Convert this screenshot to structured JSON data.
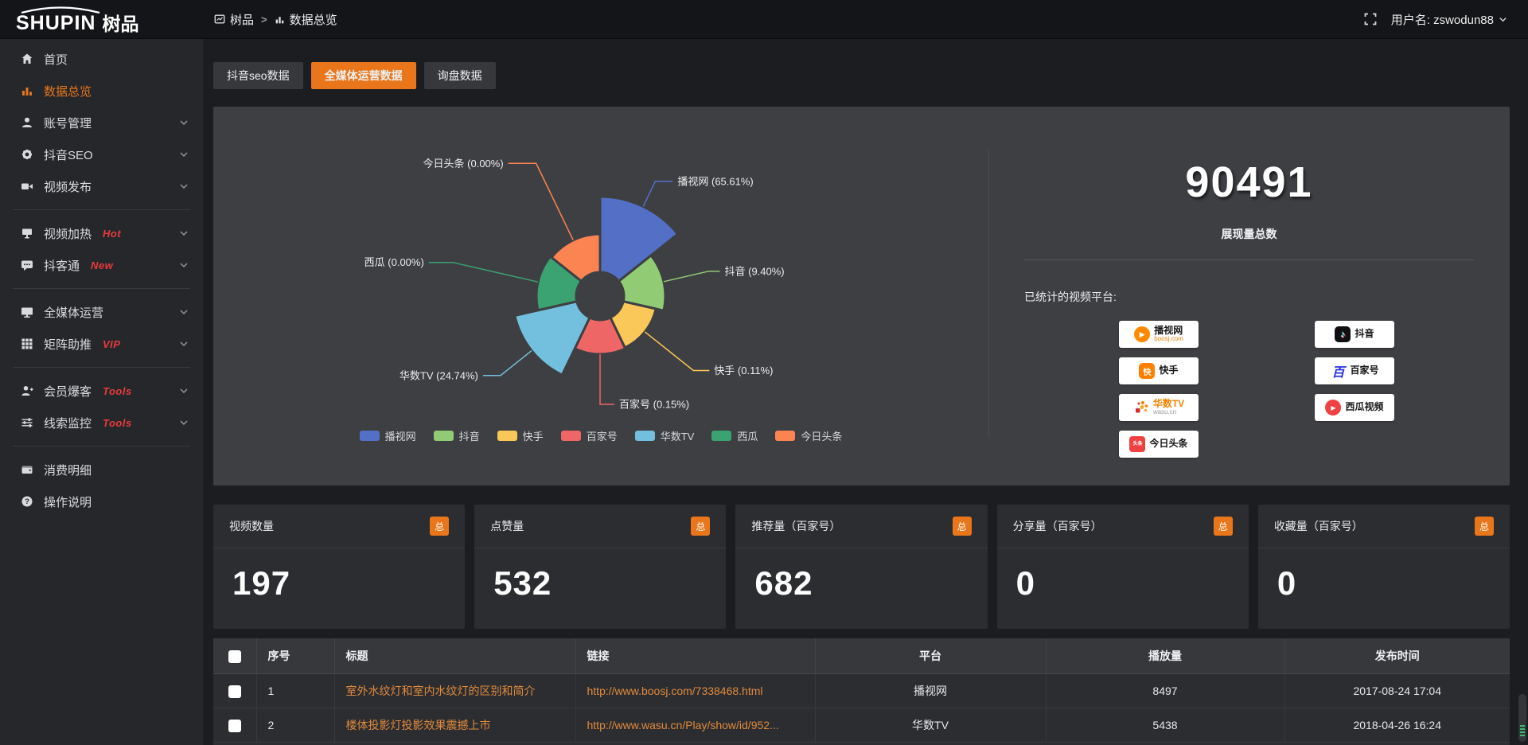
{
  "theme": {
    "accent": "#e9761b",
    "badge_red": "#e73c3c",
    "panel_bg": "#3e3f43",
    "link_orange": "#e08a3c"
  },
  "topbar": {
    "logo_main": "SHUPIN",
    "logo_cn": "树品",
    "breadcrumb_root": "树品",
    "breadcrumb_sep": ">",
    "breadcrumb_current": "数据总览",
    "user_label": "用户名: zswodun88"
  },
  "sidebar": {
    "items": [
      {
        "type": "item",
        "label": "首页",
        "icon": "home"
      },
      {
        "type": "item",
        "label": "数据总览",
        "icon": "chart",
        "active": true
      },
      {
        "type": "item",
        "label": "账号管理",
        "icon": "user",
        "chevron": true
      },
      {
        "type": "item",
        "label": "抖音SEO",
        "icon": "gear",
        "chevron": true
      },
      {
        "type": "item",
        "label": "视频发布",
        "icon": "video",
        "chevron": true
      },
      {
        "type": "divider"
      },
      {
        "type": "item",
        "label": "视频加热",
        "icon": "heat",
        "badge": "Hot",
        "chevron": true
      },
      {
        "type": "item",
        "label": "抖客通",
        "icon": "chat",
        "badge": "New",
        "chevron": true
      },
      {
        "type": "divider"
      },
      {
        "type": "item",
        "label": "全媒体运营",
        "icon": "monitor",
        "chevron": true
      },
      {
        "type": "item",
        "label": "矩阵助推",
        "icon": "grid",
        "badge": "VIP",
        "chevron": true
      },
      {
        "type": "divider"
      },
      {
        "type": "item",
        "label": "会员爆客",
        "icon": "member",
        "badge": "Tools",
        "chevron": true
      },
      {
        "type": "item",
        "label": "线索监控",
        "icon": "sliders",
        "badge": "Tools",
        "chevron": true
      },
      {
        "type": "divider"
      },
      {
        "type": "item",
        "label": "消费明细",
        "icon": "wallet"
      },
      {
        "type": "item",
        "label": "操作说明",
        "icon": "question"
      }
    ]
  },
  "tabs": [
    {
      "label": "抖音seo数据",
      "active": false
    },
    {
      "label": "全媒体运营数据",
      "active": true
    },
    {
      "label": "询盘数据",
      "active": false
    }
  ],
  "chart_data": {
    "type": "pie",
    "subtype": "nightingale-rose",
    "categories": [
      "播视网",
      "抖音",
      "快手",
      "百家号",
      "华数TV",
      "西瓜",
      "今日头条"
    ],
    "values_percent": [
      65.61,
      9.4,
      0.11,
      0.15,
      24.74,
      0.0,
      0.0
    ],
    "labels": [
      "播视网 (65.61%)",
      "抖音 (9.40%)",
      "快手 (0.11%)",
      "百家号 (0.15%)",
      "华数TV (24.74%)",
      "西瓜 (0.00%)",
      "今日头条 (0.00%)"
    ],
    "colors": [
      "#5470c6",
      "#91cc75",
      "#fac858",
      "#ee6666",
      "#73c0de",
      "#3ba272",
      "#fc8452"
    ],
    "legend_position": "bottom",
    "donut": true
  },
  "overview": {
    "total_value": "90491",
    "total_label": "展现量总数",
    "platforms_label": "已统计的视频平台:",
    "platforms": [
      {
        "name": "播视网",
        "sub": "boosj.com",
        "logo": "boosj"
      },
      {
        "name": "抖音",
        "logo": "douyin"
      },
      {
        "name": "快手",
        "logo": "kuaishou"
      },
      {
        "name": "百家号",
        "logo": "baijia"
      },
      {
        "name": "华数TV",
        "sub": "wasu.cn",
        "logo": "wasu"
      },
      {
        "name": "西瓜视频",
        "logo": "xigua"
      },
      {
        "name": "今日头条",
        "logo": "toutiao"
      }
    ]
  },
  "stats_cards": [
    {
      "label": "视频数量",
      "badge": "总",
      "value": "197"
    },
    {
      "label": "点赞量",
      "badge": "总",
      "value": "532"
    },
    {
      "label": "推荐量（百家号）",
      "badge": "总",
      "value": "682"
    },
    {
      "label": "分享量（百家号）",
      "badge": "总",
      "value": "0"
    },
    {
      "label": "收藏量（百家号）",
      "badge": "总",
      "value": "0"
    }
  ],
  "table": {
    "headers": [
      "序号",
      "标题",
      "链接",
      "平台",
      "播放量",
      "发布时间"
    ],
    "rows": [
      {
        "seq": "1",
        "title": "室外水纹灯和室内水纹灯的区别和简介",
        "link": "http://www.boosj.com/7338468.html",
        "platform": "播视网",
        "plays": "8497",
        "time": "2017-08-24 17:04"
      },
      {
        "seq": "2",
        "title": "楼体投影灯投影效果震撼上市",
        "link": "http://www.wasu.cn/Play/show/id/952...",
        "platform": "华数TV",
        "plays": "5438",
        "time": "2018-04-26 16:24"
      }
    ]
  }
}
